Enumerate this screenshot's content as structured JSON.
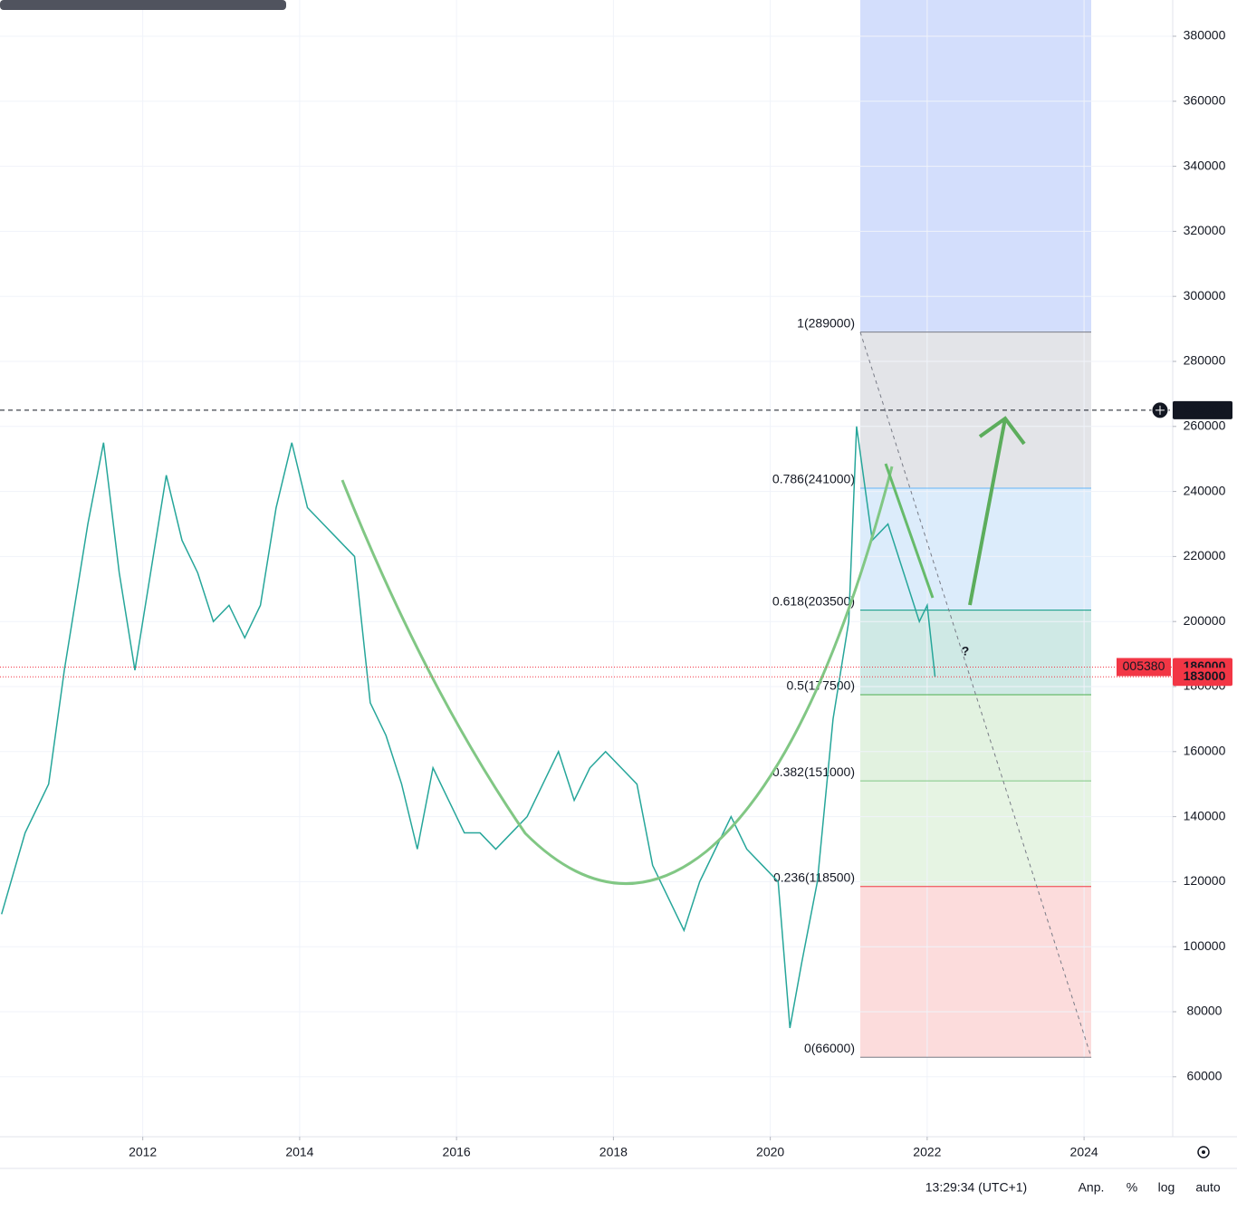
{
  "chart_data": {
    "type": "line",
    "symbol": "005380",
    "xlim": [
      2010.18,
      2025.13
    ],
    "ylim": [
      41560,
      391140
    ],
    "xticks": [
      2012,
      2014,
      2016,
      2018,
      2020,
      2022,
      2024
    ],
    "yticks": [
      60000,
      80000,
      100000,
      120000,
      140000,
      160000,
      180000,
      200000,
      220000,
      240000,
      260000,
      280000,
      300000,
      320000,
      340000,
      360000,
      380000
    ],
    "grid": true,
    "series": [
      {
        "color": "#26a69a",
        "x": [
          2010.2,
          2010.5,
          2010.8,
          2011.0,
          2011.3,
          2011.5,
          2011.7,
          2011.9,
          2012.1,
          2012.3,
          2012.5,
          2012.7,
          2012.9,
          2013.1,
          2013.3,
          2013.5,
          2013.7,
          2013.9,
          2014.1,
          2014.3,
          2014.5,
          2014.7,
          2014.9,
          2015.1,
          2015.3,
          2015.5,
          2015.7,
          2015.9,
          2016.1,
          2016.3,
          2016.5,
          2016.7,
          2016.9,
          2017.1,
          2017.3,
          2017.5,
          2017.7,
          2017.9,
          2018.1,
          2018.3,
          2018.5,
          2018.7,
          2018.9,
          2019.1,
          2019.3,
          2019.5,
          2019.7,
          2019.9,
          2020.1,
          2020.25,
          2020.4,
          2020.6,
          2020.8,
          2021.0,
          2021.1,
          2021.3,
          2021.5,
          2021.7,
          2021.9,
          2022.0,
          2022.1
        ],
        "values": [
          110000,
          135000,
          150000,
          185000,
          230000,
          255000,
          215000,
          185000,
          215000,
          245000,
          225000,
          215000,
          200000,
          205000,
          195000,
          205000,
          235000,
          255000,
          235000,
          230000,
          225000,
          220000,
          175000,
          165000,
          150000,
          130000,
          155000,
          145000,
          135000,
          135000,
          130000,
          135000,
          140000,
          150000,
          160000,
          145000,
          155000,
          160000,
          155000,
          150000,
          125000,
          115000,
          105000,
          120000,
          130000,
          140000,
          130000,
          125000,
          120000,
          75000,
          95000,
          120000,
          170000,
          200000,
          260000,
          225000,
          230000,
          215000,
          200000,
          205000,
          183000
        ]
      }
    ],
    "fib_levels": [
      {
        "label": "1(289000)",
        "value": 289000,
        "color": "#787b86"
      },
      {
        "label": "0.786(241000)",
        "value": 241000,
        "color": "#64b5f6"
      },
      {
        "label": "0.618(203500)",
        "value": 203500,
        "color": "#089981"
      },
      {
        "label": "0.5(177500)",
        "value": 177500,
        "color": "#4caf50"
      },
      {
        "label": "0.382(151000)",
        "value": 151000,
        "color": "#81c784"
      },
      {
        "label": "0.236(118500)",
        "value": 118500,
        "color": "#f23645"
      },
      {
        "label": "0(66000)",
        "value": 66000,
        "color": "#787b86"
      }
    ],
    "price_markers": [
      {
        "value": 265000,
        "color": "#131722"
      },
      {
        "value": 186000,
        "color": "#f23645"
      },
      {
        "value": 183000,
        "color": "#f23645"
      }
    ],
    "annotations": [
      "?"
    ],
    "status": {
      "time": "13:29:34 (UTC+1)",
      "buttons": [
        "Anp.",
        "%",
        "log",
        "auto"
      ]
    }
  }
}
